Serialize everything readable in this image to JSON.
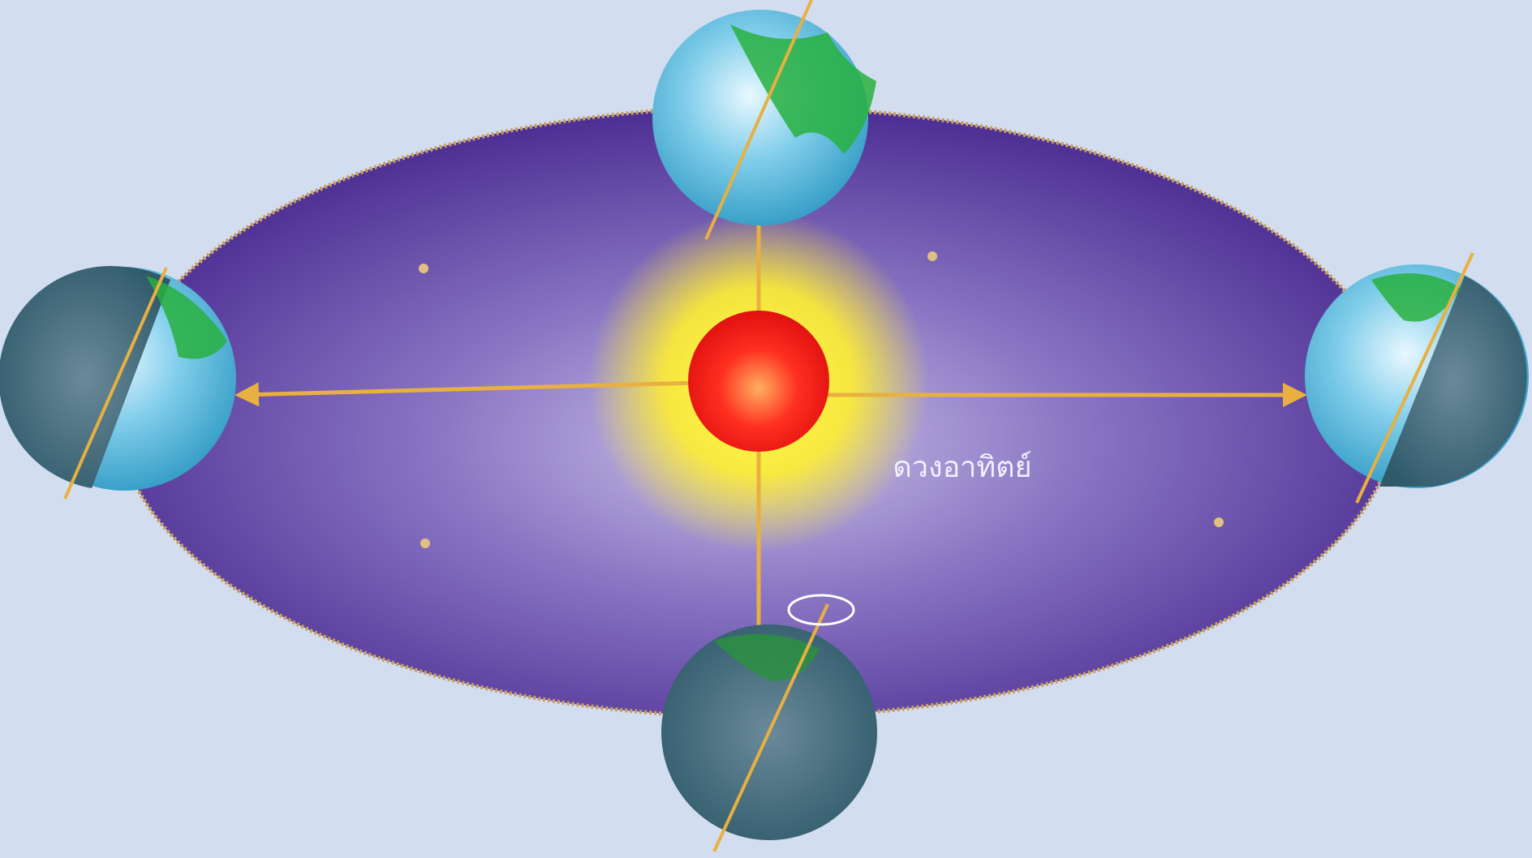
{
  "labels": {
    "sun": "ดวงอาทิตย์"
  }
}
